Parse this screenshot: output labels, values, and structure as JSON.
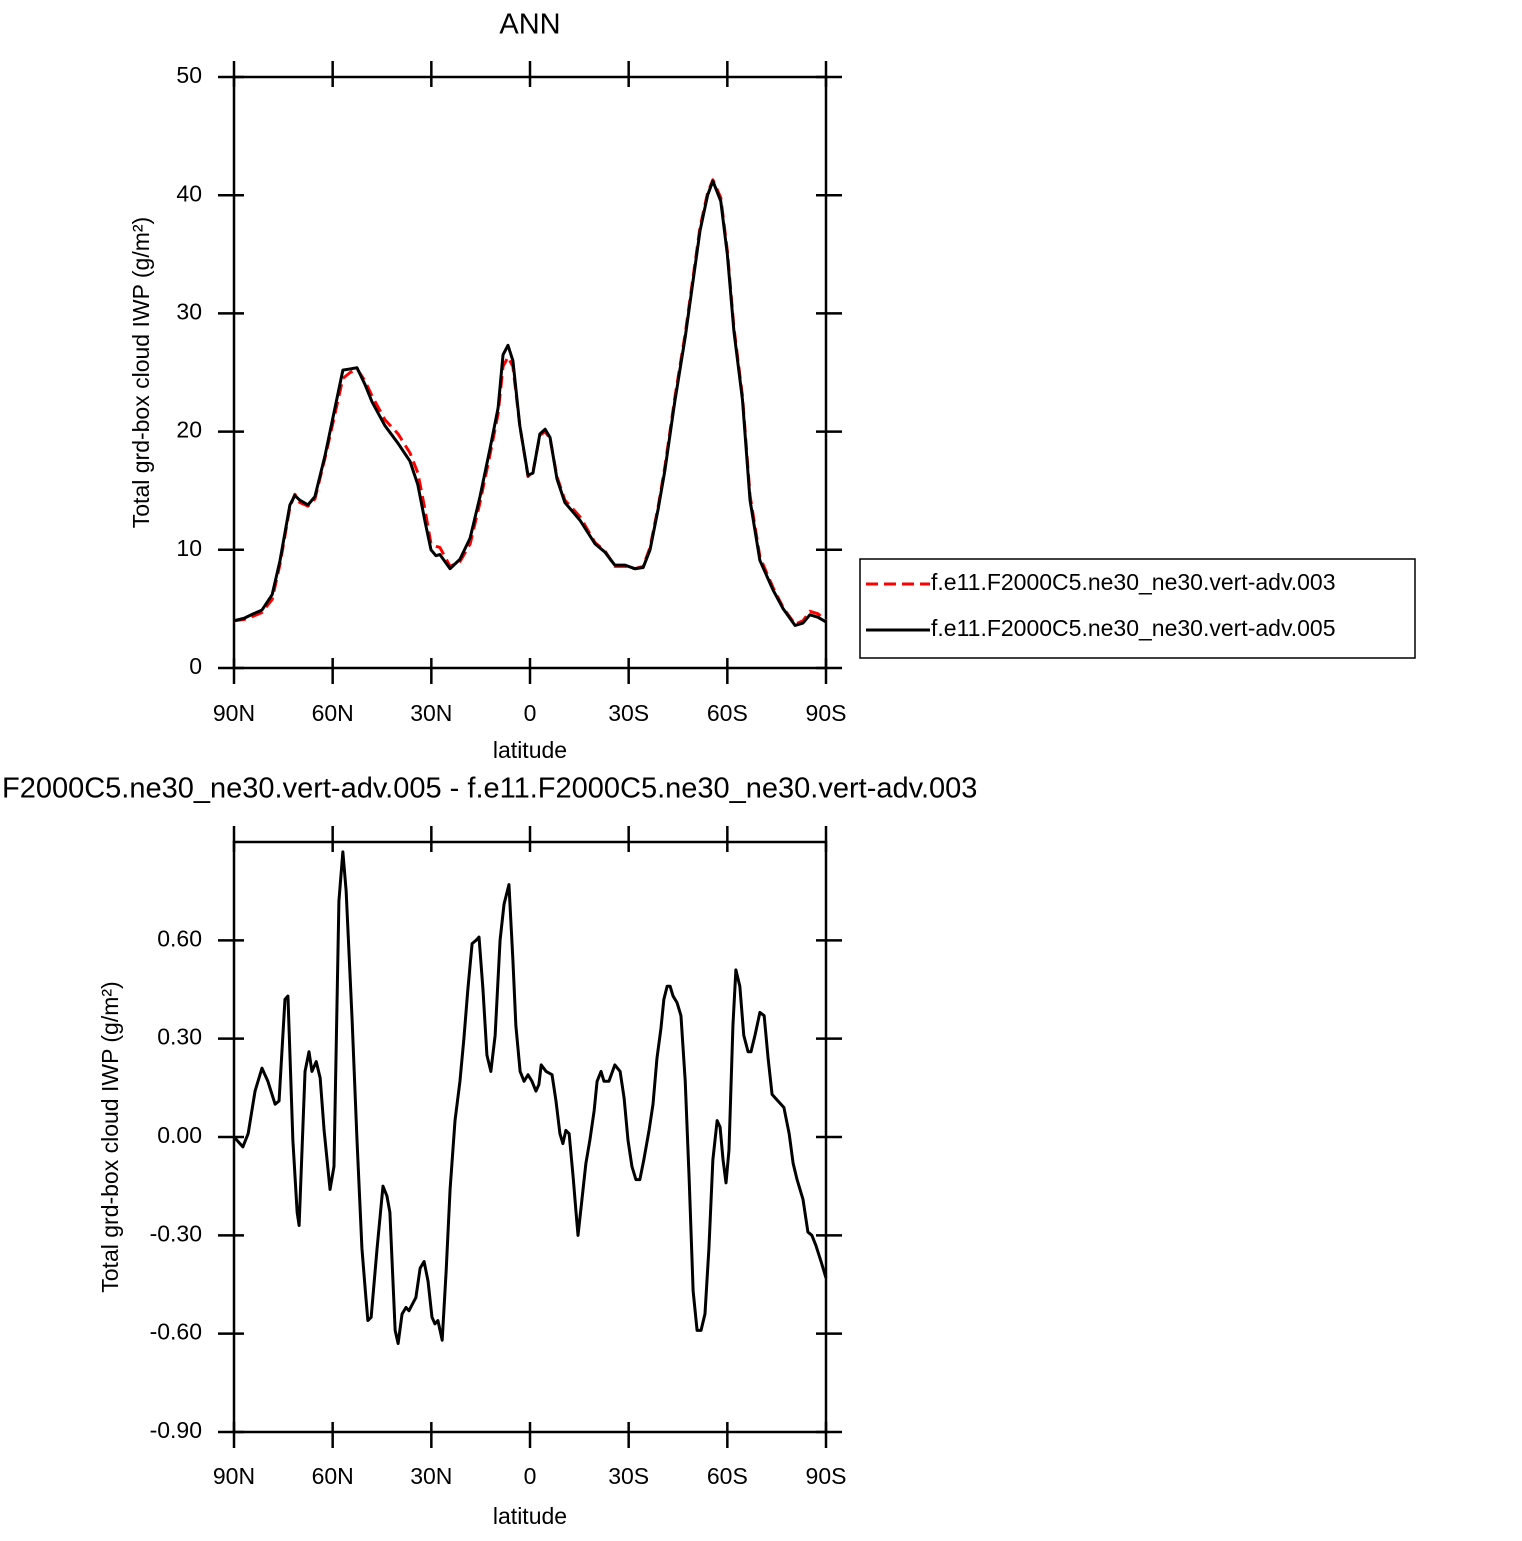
{
  "chart_data": [
    {
      "type": "line",
      "title": "ANN",
      "x_label": "latitude",
      "y_label": "Total grd-box cloud IWP (g/m²)",
      "xlim": [
        90,
        -90
      ],
      "ylim": [
        0,
        50
      ],
      "xticks": [
        {
          "value": 90,
          "label": "90N"
        },
        {
          "value": 60,
          "label": "60N"
        },
        {
          "value": 30,
          "label": "30N"
        },
        0,
        {
          "value": -30,
          "label": "30S"
        },
        {
          "value": -60,
          "label": "60S"
        },
        {
          "value": -90,
          "label": "90S"
        }
      ],
      "yticks": [
        0,
        10,
        20,
        30,
        40,
        50
      ],
      "legend": "right",
      "x": [
        90,
        87,
        84,
        81.5,
        78.4,
        76,
        73,
        71.5,
        70,
        67.5,
        65.4,
        62.3,
        59.3,
        56.9,
        54.7,
        52.6,
        50.2,
        48,
        44.1,
        40.1,
        36.5,
        34.1,
        32,
        30.1,
        28.6,
        27.4,
        24.3,
        21.3,
        18.2,
        15.2,
        12.2,
        9.7,
        8.2,
        6.7,
        5.2,
        3.1,
        0.6,
        -0.9,
        -3,
        -4.6,
        -6.1,
        -8.2,
        -10.6,
        -15.2,
        -19.8,
        -22.8,
        -25.8,
        -28.9,
        -31.9,
        -34.4,
        -36.5,
        -39,
        -41,
        -44,
        -47.2,
        -51.7,
        -54,
        -55.6,
        -58,
        -60,
        -62,
        -64.6,
        -66.9,
        -69.9,
        -73.9,
        -77,
        -80.6,
        -83,
        -85.1,
        -87.5,
        -90
      ],
      "series": [
        {
          "name": "f.e11.F2000C5.ne30_ne30.vert-adv.003",
          "color": "#ff0000",
          "dashed": true,
          "values": [
            4.0,
            4.1,
            4.4,
            4.7,
            5.8,
            8.8,
            13.6,
            14.7,
            14.0,
            13.7,
            14.3,
            17.8,
            21.5,
            24.5,
            25.0,
            25.3,
            24.3,
            23,
            21,
            19.8,
            18.2,
            16.5,
            13.5,
            10.5,
            10.3,
            10.2,
            8.6,
            9.0,
            10.5,
            14.0,
            18,
            21.5,
            25.5,
            26.3,
            25.5,
            20.5,
            16.2,
            16.6,
            19.7,
            20.0,
            19.4,
            16.2,
            14.2,
            12.8,
            10.6,
            9.9,
            8.6,
            8.6,
            8.4,
            8.6,
            10.2,
            13.7,
            17,
            22.8,
            28.3,
            37.3,
            40.2,
            41.3,
            39.8,
            35.3,
            28.8,
            23,
            14.6,
            9.4,
            6.8,
            5.1,
            3.7,
            4,
            4.8,
            4.6,
            4.0
          ]
        },
        {
          "name": "f.e11.F2000C5.ne30_ne30.vert-adv.005",
          "color": "#000000",
          "dashed": false,
          "values": [
            4.0,
            4.2,
            4.6,
            4.9,
            6.2,
            9.1,
            13.8,
            14.6,
            14.2,
            13.8,
            14.5,
            18,
            22,
            25.2,
            25.3,
            25.4,
            24,
            22.5,
            20.5,
            19,
            17.5,
            15.5,
            12.5,
            10,
            9.5,
            9.6,
            8.4,
            9.2,
            11,
            14.5,
            18.5,
            22,
            26.5,
            27.3,
            26,
            20.5,
            16.3,
            16.5,
            19.8,
            20.2,
            19.5,
            16,
            14,
            12.5,
            10.5,
            9.8,
            8.7,
            8.7,
            8.4,
            8.5,
            10,
            13.5,
            16.7,
            22.5,
            28,
            37,
            40,
            41.2,
            39.5,
            35,
            28.5,
            22.7,
            14.2,
            9.1,
            6.6,
            5,
            3.6,
            3.8,
            4.5,
            4.3,
            3.9
          ]
        }
      ]
    },
    {
      "type": "line",
      "title": "F2000C5.ne30_ne30.vert-adv.005 - f.e11.F2000C5.ne30_ne30.vert-adv.003",
      "x_label": "latitude",
      "y_label": "Total grd-box cloud IWP (g/m²)",
      "xlim": [
        90,
        -90
      ],
      "ylim": [
        -0.9,
        0.9
      ],
      "xticks": [
        {
          "value": 90,
          "label": "90N"
        },
        {
          "value": 60,
          "label": "60N"
        },
        {
          "value": 30,
          "label": "30N"
        },
        0,
        {
          "value": -30,
          "label": "30S"
        },
        {
          "value": -60,
          "label": "60S"
        },
        {
          "value": -90,
          "label": "90S"
        }
      ],
      "yticks": [
        {
          "value": -0.9,
          "label": "-0.90"
        },
        {
          "value": -0.6,
          "label": "-0.60"
        },
        {
          "value": -0.3,
          "label": "-0.30"
        },
        {
          "value": 0,
          "label": "0.00"
        },
        {
          "value": 0.3,
          "label": "0.30"
        },
        {
          "value": 0.6,
          "label": "0.60"
        }
      ],
      "x": [
        90,
        87.3,
        85.7,
        83.6,
        81.5,
        79.7,
        77.5,
        76.3,
        74.5,
        73.6,
        72.1,
        70.8,
        70.2,
        68.4,
        67.2,
        66.3,
        65,
        63.8,
        62.6,
        60.8,
        59.6,
        58.1,
        56.9,
        55.9,
        54.1,
        52.6,
        51.1,
        49.9,
        49.3,
        48.3,
        46.5,
        44.7,
        43.5,
        42.6,
        41,
        40.1,
        38.9,
        37.7,
        36.8,
        34.7,
        33.4,
        32.2,
        31,
        29.8,
        28.9,
        28,
        26.7,
        25.5,
        24.3,
        22.8,
        21.3,
        20.1,
        18.9,
        17.6,
        16.4,
        15.5,
        14.3,
        13.1,
        11.9,
        10.6,
        9.1,
        7.9,
        6.4,
        5.2,
        4.3,
        3,
        1.8,
        0.6,
        -0.6,
        -1.8,
        -2.7,
        -3.4,
        -4.9,
        -6.7,
        -7.9,
        -9.1,
        -10,
        -10.9,
        -11.9,
        -13.1,
        -14,
        -14.6,
        -15.8,
        -17,
        -18.2,
        -19.5,
        -20.4,
        -21.6,
        -22.5,
        -24,
        -25.8,
        -27.4,
        -28.6,
        -29.8,
        -31,
        -32.2,
        -33.4,
        -34.6,
        -36.2,
        -37.4,
        -38.6,
        -39.8,
        -40.7,
        -41.7,
        -42.6,
        -43.5,
        -44.7,
        -45.9,
        -47.2,
        -48.4,
        -49.6,
        -50.8,
        -52,
        -53.2,
        -54.4,
        -55.6,
        -56.9,
        -57.8,
        -58.7,
        -59.6,
        -60.5,
        -61.7,
        -62.6,
        -63.8,
        -65,
        -66.3,
        -67.2,
        -68.4,
        -69.9,
        -71.2,
        -72.4,
        -73.6,
        -75.4,
        -77.2,
        -78.8,
        -80,
        -81.2,
        -83,
        -84.5,
        -85.7,
        -86.9,
        -88.5,
        -90
      ],
      "series": [
        {
          "color": "#000000",
          "dashed": false,
          "values": [
            0,
            -0.03,
            0.01,
            0.14,
            0.21,
            0.17,
            0.1,
            0.11,
            0.42,
            0.43,
            -0.01,
            -0.23,
            -0.27,
            0.2,
            0.26,
            0.2,
            0.23,
            0.18,
            0.02,
            -0.16,
            -0.09,
            0.72,
            0.87,
            0.75,
            0.36,
            -0.01,
            -0.34,
            -0.49,
            -0.56,
            -0.55,
            -0.34,
            -0.15,
            -0.18,
            -0.23,
            -0.59,
            -0.63,
            -0.54,
            -0.52,
            -0.53,
            -0.49,
            -0.4,
            -0.38,
            -0.44,
            -0.55,
            -0.57,
            -0.56,
            -0.62,
            -0.41,
            -0.16,
            0.05,
            0.17,
            0.3,
            0.45,
            0.59,
            0.6,
            0.61,
            0.45,
            0.25,
            0.2,
            0.31,
            0.6,
            0.71,
            0.77,
            0.54,
            0.34,
            0.2,
            0.17,
            0.19,
            0.17,
            0.14,
            0.16,
            0.22,
            0.2,
            0.19,
            0.11,
            0.01,
            -0.02,
            0.02,
            0.01,
            -0.12,
            -0.23,
            -0.3,
            -0.19,
            -0.08,
            -0.01,
            0.08,
            0.17,
            0.2,
            0.17,
            0.17,
            0.22,
            0.2,
            0.12,
            -0.01,
            -0.09,
            -0.13,
            -0.13,
            -0.07,
            0.02,
            0.1,
            0.24,
            0.33,
            0.42,
            0.46,
            0.46,
            0.43,
            0.41,
            0.37,
            0.17,
            -0.13,
            -0.47,
            -0.59,
            -0.59,
            -0.54,
            -0.34,
            -0.07,
            0.05,
            0.03,
            -0.07,
            -0.14,
            -0.04,
            0.34,
            0.51,
            0.46,
            0.31,
            0.26,
            0.26,
            0.31,
            0.38,
            0.37,
            0.24,
            0.13,
            0.11,
            0.09,
            0.01,
            -0.08,
            -0.13,
            -0.19,
            -0.29,
            -0.3,
            -0.33,
            -0.38,
            -0.43
          ]
        }
      ]
    }
  ]
}
